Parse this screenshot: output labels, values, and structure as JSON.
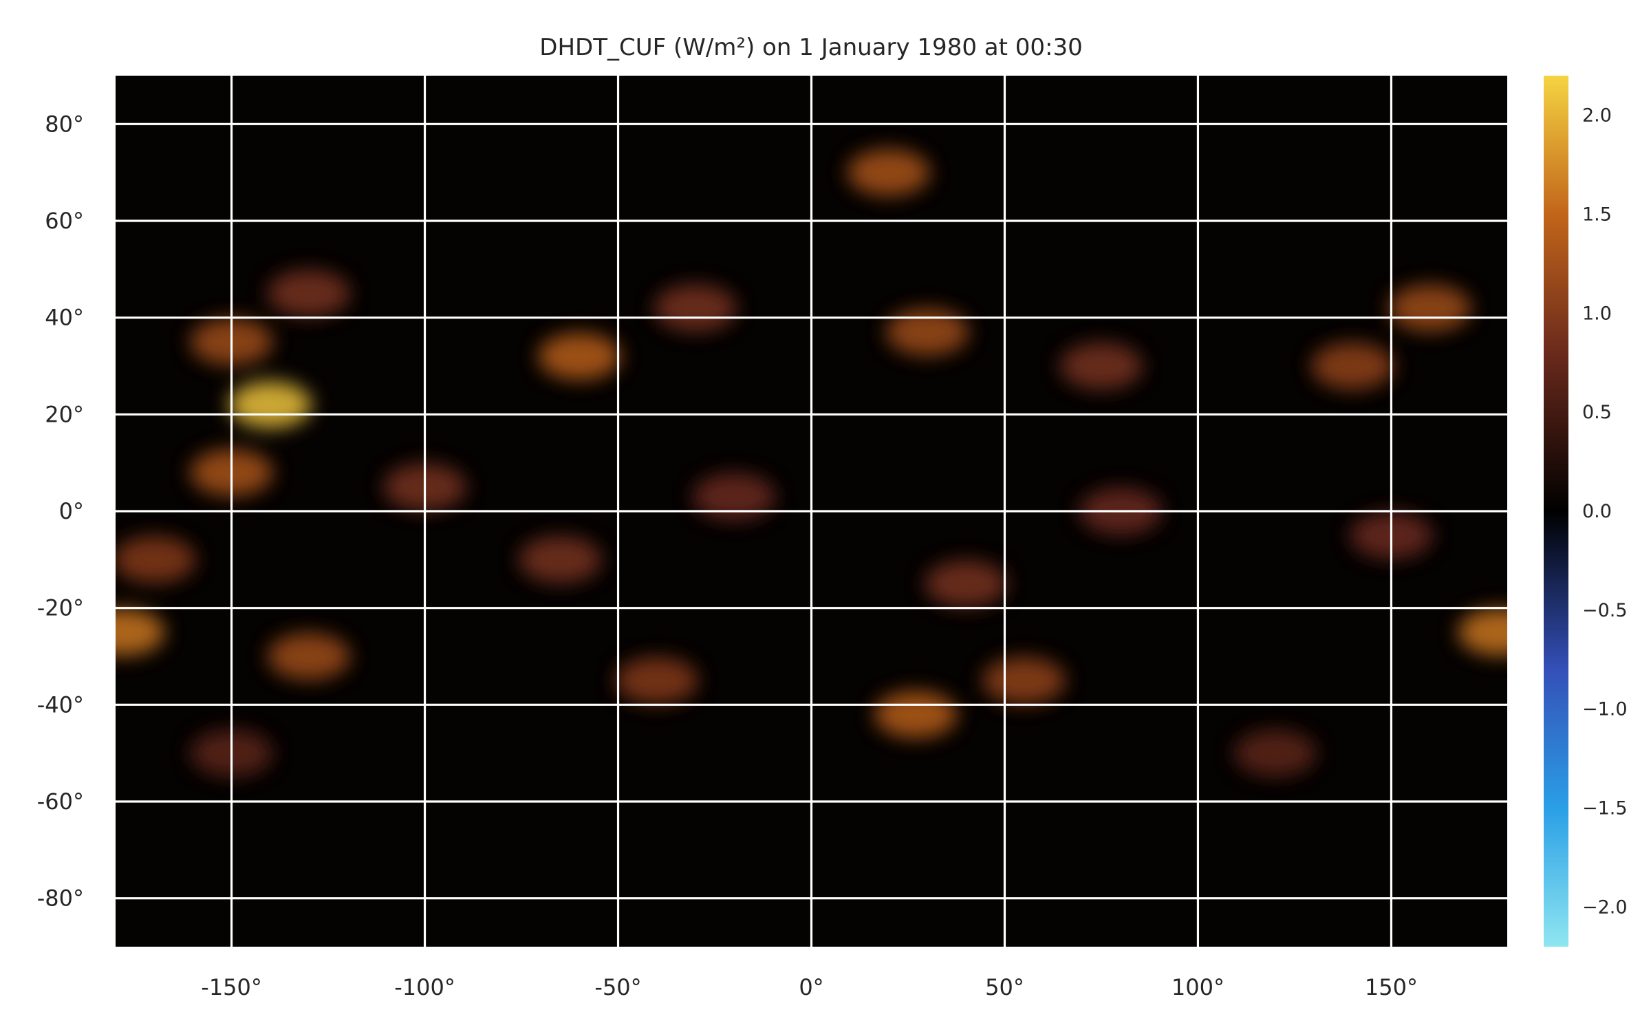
{
  "chart_data": {
    "type": "heatmap",
    "title": "DHDT_CUF (W/m²) on 1 January 1980 at 00:30",
    "xlabel": "",
    "ylabel": "",
    "xlim": [
      -180,
      180
    ],
    "ylim": [
      -90,
      90
    ],
    "x_ticks": [
      -150,
      -100,
      -50,
      0,
      50,
      100,
      150
    ],
    "x_tick_labels": [
      "-150°",
      "-100°",
      "-50°",
      "0°",
      "50°",
      "100°",
      "150°"
    ],
    "y_ticks": [
      80,
      60,
      40,
      20,
      0,
      -20,
      -40,
      -60,
      -80
    ],
    "y_tick_labels": [
      "80°",
      "60°",
      "40°",
      "20°",
      "0°",
      "-20°",
      "-40°",
      "-60°",
      "-80°"
    ],
    "grid": true,
    "grid_color": "#ffffff",
    "colorbar": {
      "min": -2.2,
      "max": 2.2,
      "ticks": [
        2.0,
        1.5,
        1.0,
        0.5,
        0.0,
        -0.5,
        -1.0,
        -1.5,
        -2.0
      ],
      "tick_labels": [
        "2.0",
        "1.5",
        "1.0",
        "0.5",
        "0.0",
        "−0.5",
        "−1.0",
        "−1.5",
        "−2.0"
      ],
      "colormap_stops": [
        {
          "value": -2.2,
          "color": "#8fe6f0"
        },
        {
          "value": -1.5,
          "color": "#2a9fe6"
        },
        {
          "value": -0.8,
          "color": "#3450b8"
        },
        {
          "value": 0.0,
          "color": "#000000"
        },
        {
          "value": 0.8,
          "color": "#6b2a1c"
        },
        {
          "value": 1.5,
          "color": "#c2651a"
        },
        {
          "value": 2.2,
          "color": "#f5d442"
        }
      ]
    },
    "field_features": [
      {
        "lon": -140,
        "lat": 22,
        "value": 2.1
      },
      {
        "lon": -150,
        "lat": 35,
        "value": 1.2
      },
      {
        "lon": -130,
        "lat": 45,
        "value": 0.9
      },
      {
        "lon": -60,
        "lat": 32,
        "value": 1.4
      },
      {
        "lon": -30,
        "lat": 42,
        "value": 0.9
      },
      {
        "lon": 20,
        "lat": 70,
        "value": 1.3
      },
      {
        "lon": 30,
        "lat": 37,
        "value": 1.2
      },
      {
        "lon": 75,
        "lat": 30,
        "value": 0.9
      },
      {
        "lon": 140,
        "lat": 30,
        "value": 1.1
      },
      {
        "lon": 160,
        "lat": 42,
        "value": 1.2
      },
      {
        "lon": -150,
        "lat": 8,
        "value": 1.3
      },
      {
        "lon": -100,
        "lat": 5,
        "value": 0.9
      },
      {
        "lon": -20,
        "lat": 3,
        "value": 0.8
      },
      {
        "lon": 80,
        "lat": 0,
        "value": 0.8
      },
      {
        "lon": 150,
        "lat": -5,
        "value": 0.8
      },
      {
        "lon": -170,
        "lat": -10,
        "value": 1.0
      },
      {
        "lon": -65,
        "lat": -10,
        "value": 0.9
      },
      {
        "lon": 40,
        "lat": -15,
        "value": 0.9
      },
      {
        "lon": -178,
        "lat": -25,
        "value": 1.6
      },
      {
        "lon": 178,
        "lat": -25,
        "value": 1.6
      },
      {
        "lon": -130,
        "lat": -30,
        "value": 1.2
      },
      {
        "lon": -40,
        "lat": -35,
        "value": 1.0
      },
      {
        "lon": 27,
        "lat": -42,
        "value": 1.4
      },
      {
        "lon": 55,
        "lat": -35,
        "value": 1.1
      },
      {
        "lon": 120,
        "lat": -50,
        "value": 0.7
      },
      {
        "lon": -150,
        "lat": -50,
        "value": 0.7
      }
    ]
  }
}
